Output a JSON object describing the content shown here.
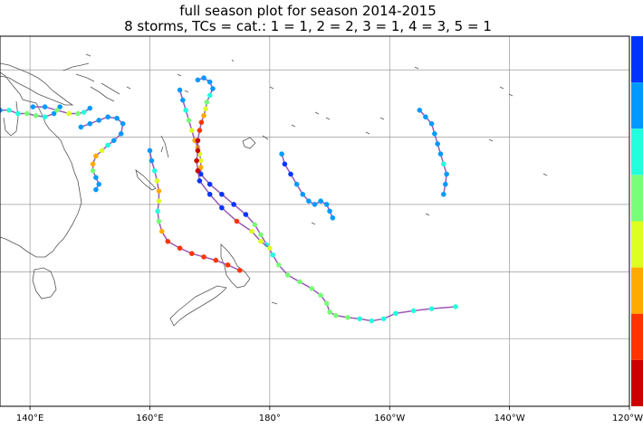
{
  "title": "full season plot for season 2014-2015",
  "subtitle": "8 storms, TCs = cat.: 1 = 1, 2 = 2, 3 = 1, 4 = 3, 5 = 1",
  "colors": {
    "track_line": "#9b59b6",
    "coast": "#555555",
    "grid": "#888888",
    "colorbar": [
      "#0033ff",
      "#0099ff",
      "#22ffdd",
      "#77ff77",
      "#ddff22",
      "#ffaa00",
      "#ff3300",
      "#cc0000"
    ]
  },
  "map": {
    "lon_range": [
      135,
      240
    ],
    "lat_range": [
      -60,
      -5
    ],
    "x_ticks": [
      {
        "lon": 140,
        "label": "140°E"
      },
      {
        "lon": 160,
        "label": "160°E"
      },
      {
        "lon": 180,
        "label": "180°"
      },
      {
        "lon": 200,
        "label": "160°W"
      },
      {
        "lon": 220,
        "label": "140°W"
      },
      {
        "lon": 240,
        "label": "120°W"
      }
    ],
    "grid_lats": [
      -10,
      -20,
      -30,
      -40,
      -50
    ]
  },
  "storms": [
    {
      "id": "s1",
      "points": [
        [
          135,
          -16,
          1
        ],
        [
          136.5,
          -16,
          2
        ],
        [
          138,
          -16.5,
          2
        ],
        [
          139.5,
          -16.5,
          3
        ],
        [
          141,
          -16.8,
          3
        ],
        [
          142.5,
          -17,
          2
        ],
        [
          144,
          -16.5,
          1
        ],
        [
          145,
          -15.5,
          1
        ]
      ]
    },
    {
      "id": "s2",
      "points": [
        [
          140.5,
          -15.5,
          1
        ],
        [
          142.5,
          -15.5,
          1
        ],
        [
          144.5,
          -16,
          3
        ],
        [
          146.5,
          -16.5,
          4
        ],
        [
          148,
          -16.5,
          3
        ],
        [
          149,
          -16.3,
          2
        ],
        [
          150,
          -15.7,
          1
        ]
      ]
    },
    {
      "id": "s3",
      "points": [
        [
          148.5,
          -18.5,
          1
        ],
        [
          150,
          -18,
          1
        ],
        [
          151.5,
          -17.5,
          1
        ],
        [
          153,
          -17,
          1
        ],
        [
          154.5,
          -17.2,
          1
        ],
        [
          155.5,
          -18,
          1
        ],
        [
          155.2,
          -19.5,
          1
        ],
        [
          154,
          -20.5,
          1
        ],
        [
          153,
          -21.2,
          2
        ],
        [
          152,
          -22,
          4
        ],
        [
          151,
          -22.8,
          5
        ],
        [
          150.5,
          -24,
          5
        ],
        [
          150.5,
          -25,
          3
        ],
        [
          151,
          -26,
          1
        ],
        [
          151.5,
          -27,
          1
        ],
        [
          151,
          -27.8,
          1
        ]
      ]
    },
    {
      "id": "s4",
      "points": [
        [
          165,
          -13,
          1
        ],
        [
          165.5,
          -14.5,
          1
        ],
        [
          166,
          -16,
          2
        ],
        [
          166.5,
          -17.5,
          3
        ],
        [
          167,
          -19,
          4
        ],
        [
          167.5,
          -20.5,
          5
        ],
        [
          168,
          -21.5,
          5
        ],
        [
          168.3,
          -22.5,
          4
        ],
        [
          168.5,
          -23.5,
          4
        ],
        [
          168.5,
          -24.5,
          5
        ],
        [
          168.5,
          -25.5,
          0
        ],
        [
          170,
          -27,
          0
        ],
        [
          172,
          -28.5,
          0
        ],
        [
          174,
          -30,
          0
        ],
        [
          176,
          -31.5,
          0
        ],
        [
          177.5,
          -33,
          3
        ],
        [
          178.5,
          -34.5,
          3
        ],
        [
          179.5,
          -36,
          2
        ],
        [
          180.5,
          -37.5,
          2
        ],
        [
          181.5,
          -39,
          3
        ],
        [
          183,
          -40.5,
          3
        ],
        [
          185,
          -41.5,
          3
        ],
        [
          187,
          -42.5,
          3
        ],
        [
          188.5,
          -43.5,
          3
        ],
        [
          189.5,
          -44.7,
          3
        ],
        [
          190,
          -46,
          3
        ],
        [
          191,
          -46.5,
          3
        ],
        [
          193,
          -46.8,
          3
        ],
        [
          195,
          -47,
          2
        ],
        [
          197,
          -47.3,
          2
        ],
        [
          199,
          -47,
          2
        ],
        [
          201,
          -46.2,
          2
        ],
        [
          204,
          -45.8,
          2
        ],
        [
          207,
          -45.5,
          2
        ],
        [
          211,
          -45.2,
          2
        ]
      ]
    },
    {
      "id": "s5",
      "points": [
        [
          168,
          -11.5,
          1
        ],
        [
          169,
          -11.2,
          1
        ],
        [
          170,
          -11.8,
          1
        ],
        [
          170.5,
          -12.8,
          1
        ],
        [
          170,
          -13.8,
          2
        ],
        [
          169.5,
          -14.8,
          3
        ],
        [
          169.3,
          -15.8,
          4
        ],
        [
          169,
          -16.8,
          5
        ],
        [
          168.6,
          -17.8,
          6
        ],
        [
          168.3,
          -19,
          6
        ],
        [
          168,
          -20.5,
          7
        ],
        [
          168,
          -22,
          7
        ],
        [
          167.8,
          -23.5,
          7
        ],
        [
          168,
          -25,
          7
        ],
        [
          168.3,
          -26.5,
          0
        ],
        [
          170,
          -28.5,
          0
        ],
        [
          172,
          -30.5,
          0
        ],
        [
          174.5,
          -32.5,
          6
        ],
        [
          177,
          -34,
          4
        ],
        [
          178.5,
          -35.5,
          4
        ],
        [
          180,
          -36.5,
          4
        ]
      ]
    },
    {
      "id": "s6",
      "points": [
        [
          160,
          -22,
          1
        ],
        [
          160.3,
          -23.5,
          1
        ],
        [
          160.8,
          -25,
          2
        ],
        [
          161.2,
          -26.5,
          4
        ],
        [
          161.5,
          -28,
          5
        ],
        [
          161.5,
          -29.5,
          4
        ],
        [
          161.3,
          -31,
          2
        ],
        [
          161.5,
          -32.5,
          3
        ],
        [
          162,
          -34,
          5
        ],
        [
          163,
          -35.5,
          6
        ],
        [
          165,
          -36.5,
          6
        ],
        [
          167,
          -37.3,
          6
        ],
        [
          169,
          -37.8,
          6
        ],
        [
          171,
          -38.3,
          6
        ],
        [
          173,
          -39,
          6
        ],
        [
          175,
          -39.8,
          6
        ]
      ]
    },
    {
      "id": "s7",
      "points": [
        [
          182,
          -22.5,
          1
        ],
        [
          182.5,
          -24,
          0
        ],
        [
          183.5,
          -25.5,
          0
        ],
        [
          184.5,
          -27,
          1
        ],
        [
          185.5,
          -28.5,
          1
        ],
        [
          186.5,
          -29.5,
          1
        ],
        [
          187.5,
          -30,
          1
        ],
        [
          188.5,
          -29.5,
          1
        ],
        [
          189.5,
          -30,
          1
        ],
        [
          190,
          -31,
          1
        ],
        [
          190.5,
          -32,
          1
        ]
      ]
    },
    {
      "id": "s8",
      "points": [
        [
          205,
          -16,
          1
        ],
        [
          206,
          -17,
          1
        ],
        [
          207,
          -18,
          1
        ],
        [
          207.5,
          -19.5,
          1
        ],
        [
          208,
          -21,
          1
        ],
        [
          208.5,
          -22.5,
          1
        ],
        [
          209,
          -24,
          2
        ],
        [
          209.5,
          -25.5,
          1
        ],
        [
          209.3,
          -27,
          1
        ],
        [
          209,
          -28.5,
          1
        ]
      ]
    }
  ]
}
